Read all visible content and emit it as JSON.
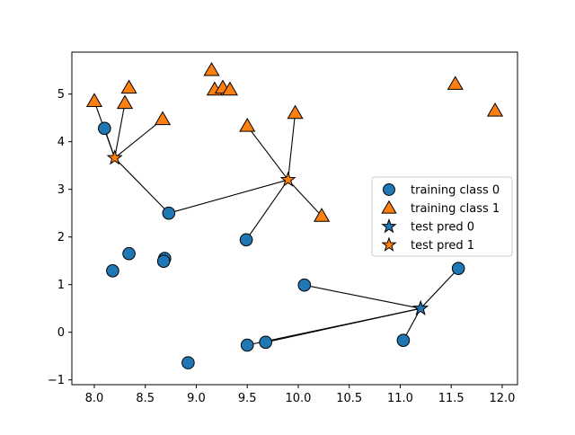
{
  "chart_data": {
    "type": "scatter",
    "title": "",
    "xlabel": "",
    "ylabel": "",
    "xlim": [
      7.78,
      12.15
    ],
    "ylim": [
      -1.1,
      5.88
    ],
    "xticks": [
      "8.0",
      "8.5",
      "9.0",
      "9.5",
      "10.0",
      "10.5",
      "11.0",
      "11.5",
      "12.0"
    ],
    "yticks": [
      "−1",
      "0",
      "1",
      "2",
      "3",
      "4",
      "5"
    ],
    "grid": false,
    "legend_position": "center-right",
    "series": [
      {
        "name": "training class 0",
        "marker": "circle",
        "color": "#1f77b4",
        "points": [
          [
            8.1,
            4.28
          ],
          [
            8.73,
            2.5
          ],
          [
            8.34,
            1.65
          ],
          [
            8.18,
            1.29
          ],
          [
            8.69,
            1.55
          ],
          [
            8.68,
            1.49
          ],
          [
            8.92,
            -0.64
          ],
          [
            9.49,
            1.94
          ],
          [
            9.5,
            -0.27
          ],
          [
            9.68,
            -0.21
          ],
          [
            10.06,
            0.99
          ],
          [
            11.03,
            -0.17
          ],
          [
            11.57,
            1.34
          ]
        ]
      },
      {
        "name": "training class 1",
        "marker": "triangle",
        "color": "#ff7f0e",
        "points": [
          [
            8.0,
            4.85
          ],
          [
            8.3,
            4.81
          ],
          [
            8.34,
            5.13
          ],
          [
            8.67,
            4.47
          ],
          [
            9.15,
            5.5
          ],
          [
            9.18,
            5.09
          ],
          [
            9.26,
            5.13
          ],
          [
            9.33,
            5.09
          ],
          [
            9.5,
            4.33
          ],
          [
            9.97,
            4.6
          ],
          [
            10.23,
            2.44
          ],
          [
            11.54,
            5.21
          ],
          [
            11.93,
            4.65
          ]
        ]
      },
      {
        "name": "test pred 0",
        "marker": "star",
        "color": "#1f77b4",
        "points": [
          [
            11.2,
            0.5
          ]
        ]
      },
      {
        "name": "test pred 1",
        "marker": "star",
        "color": "#ff7f0e",
        "points": [
          [
            8.2,
            3.66
          ],
          [
            9.9,
            3.2
          ]
        ]
      }
    ],
    "neighbor_links": [
      {
        "from": [
          8.2,
          3.66
        ],
        "to": [
          [
            8.1,
            4.28
          ],
          [
            8.0,
            4.85
          ],
          [
            8.3,
            4.81
          ],
          [
            8.67,
            4.47
          ],
          [
            8.73,
            2.5
          ]
        ]
      },
      {
        "from": [
          9.9,
          3.2
        ],
        "to": [
          [
            8.73,
            2.5
          ],
          [
            9.5,
            4.33
          ],
          [
            9.97,
            4.6
          ],
          [
            10.23,
            2.44
          ],
          [
            9.49,
            1.94
          ]
        ]
      },
      {
        "from": [
          11.2,
          0.5
        ],
        "to": [
          [
            10.06,
            0.99
          ],
          [
            9.5,
            -0.27
          ],
          [
            9.68,
            -0.21
          ],
          [
            11.03,
            -0.17
          ],
          [
            11.57,
            1.34
          ]
        ]
      }
    ]
  }
}
